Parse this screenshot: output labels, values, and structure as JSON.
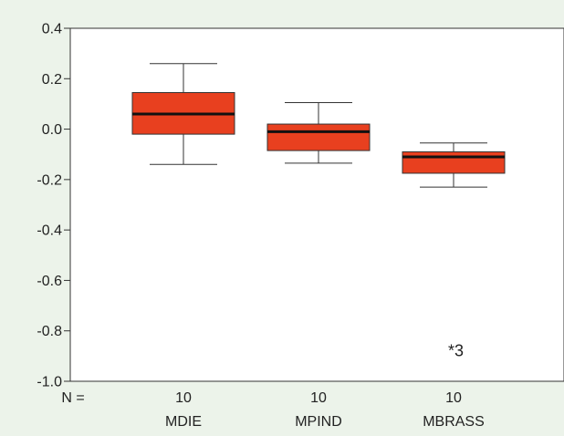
{
  "chart_data": {
    "type": "boxplot",
    "title": "",
    "xlabel": "",
    "ylabel": "",
    "ylim": [
      -1.0,
      0.4
    ],
    "yticks": [
      "0.4",
      "0.2",
      "0.0",
      "-0.2",
      "-0.4",
      "-0.6",
      "-0.8",
      "-1.0"
    ],
    "ytick_values": [
      0.4,
      0.2,
      0.0,
      -0.2,
      -0.4,
      -0.6,
      -0.8,
      -1.0
    ],
    "n_prefix": "N =",
    "box_color": "#e8401f",
    "grid": false,
    "categories": [
      "MDIE",
      "MPIND",
      "MBRASS"
    ],
    "series": [
      {
        "category": "MDIE",
        "n": "10",
        "whisker_low": -0.14,
        "q1": -0.02,
        "median": 0.06,
        "q3": 0.145,
        "whisker_high": 0.26,
        "outliers": []
      },
      {
        "category": "MPIND",
        "n": "10",
        "whisker_low": -0.135,
        "q1": -0.085,
        "median": -0.01,
        "q3": 0.02,
        "whisker_high": 0.105,
        "outliers": []
      },
      {
        "category": "MBRASS",
        "n": "10",
        "whisker_low": -0.23,
        "q1": -0.175,
        "median": -0.11,
        "q3": -0.09,
        "whisker_high": -0.055,
        "outliers": [
          {
            "value": -0.875,
            "symbol": "*",
            "label": "3"
          }
        ]
      }
    ]
  }
}
